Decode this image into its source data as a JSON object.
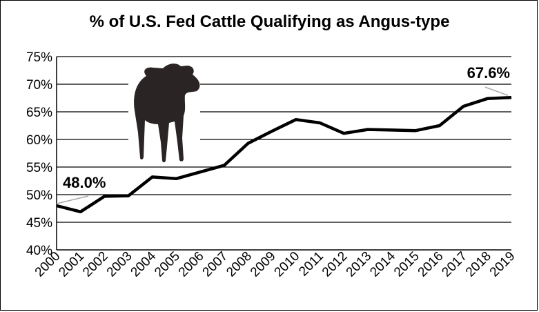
{
  "chart_data": {
    "type": "line",
    "title": "% of U.S. Fed Cattle Qualifying as Angus-type",
    "xlabel": "",
    "ylabel": "",
    "x": [
      "2000",
      "2001",
      "2002",
      "2003",
      "2004",
      "2005",
      "2006",
      "2007",
      "2008",
      "2009",
      "2010",
      "2011",
      "2012",
      "2013",
      "2014",
      "2015",
      "2016",
      "2017",
      "2018",
      "2019"
    ],
    "values": [
      48.0,
      46.9,
      49.7,
      49.8,
      53.2,
      52.9,
      54.1,
      55.3,
      59.3,
      61.5,
      63.6,
      63.0,
      61.1,
      61.8,
      61.7,
      61.6,
      62.5,
      66.0,
      67.4,
      67.6
    ],
    "ylim": [
      40,
      75
    ],
    "yticks": [
      "40%",
      "45%",
      "50%",
      "55%",
      "60%",
      "65%",
      "70%",
      "75%"
    ],
    "grid": true,
    "legend": "none",
    "annotations": [
      {
        "label": "48.0%",
        "x": "2000",
        "y": 48.0
      },
      {
        "label": "67.6%",
        "x": "2019",
        "y": 67.6
      }
    ],
    "colors": {
      "line": "#000000",
      "grid": "#000000",
      "leader": "#a6a6a6",
      "cow": "#2b2424"
    },
    "image": {
      "icon": "cow-silhouette-icon"
    }
  }
}
